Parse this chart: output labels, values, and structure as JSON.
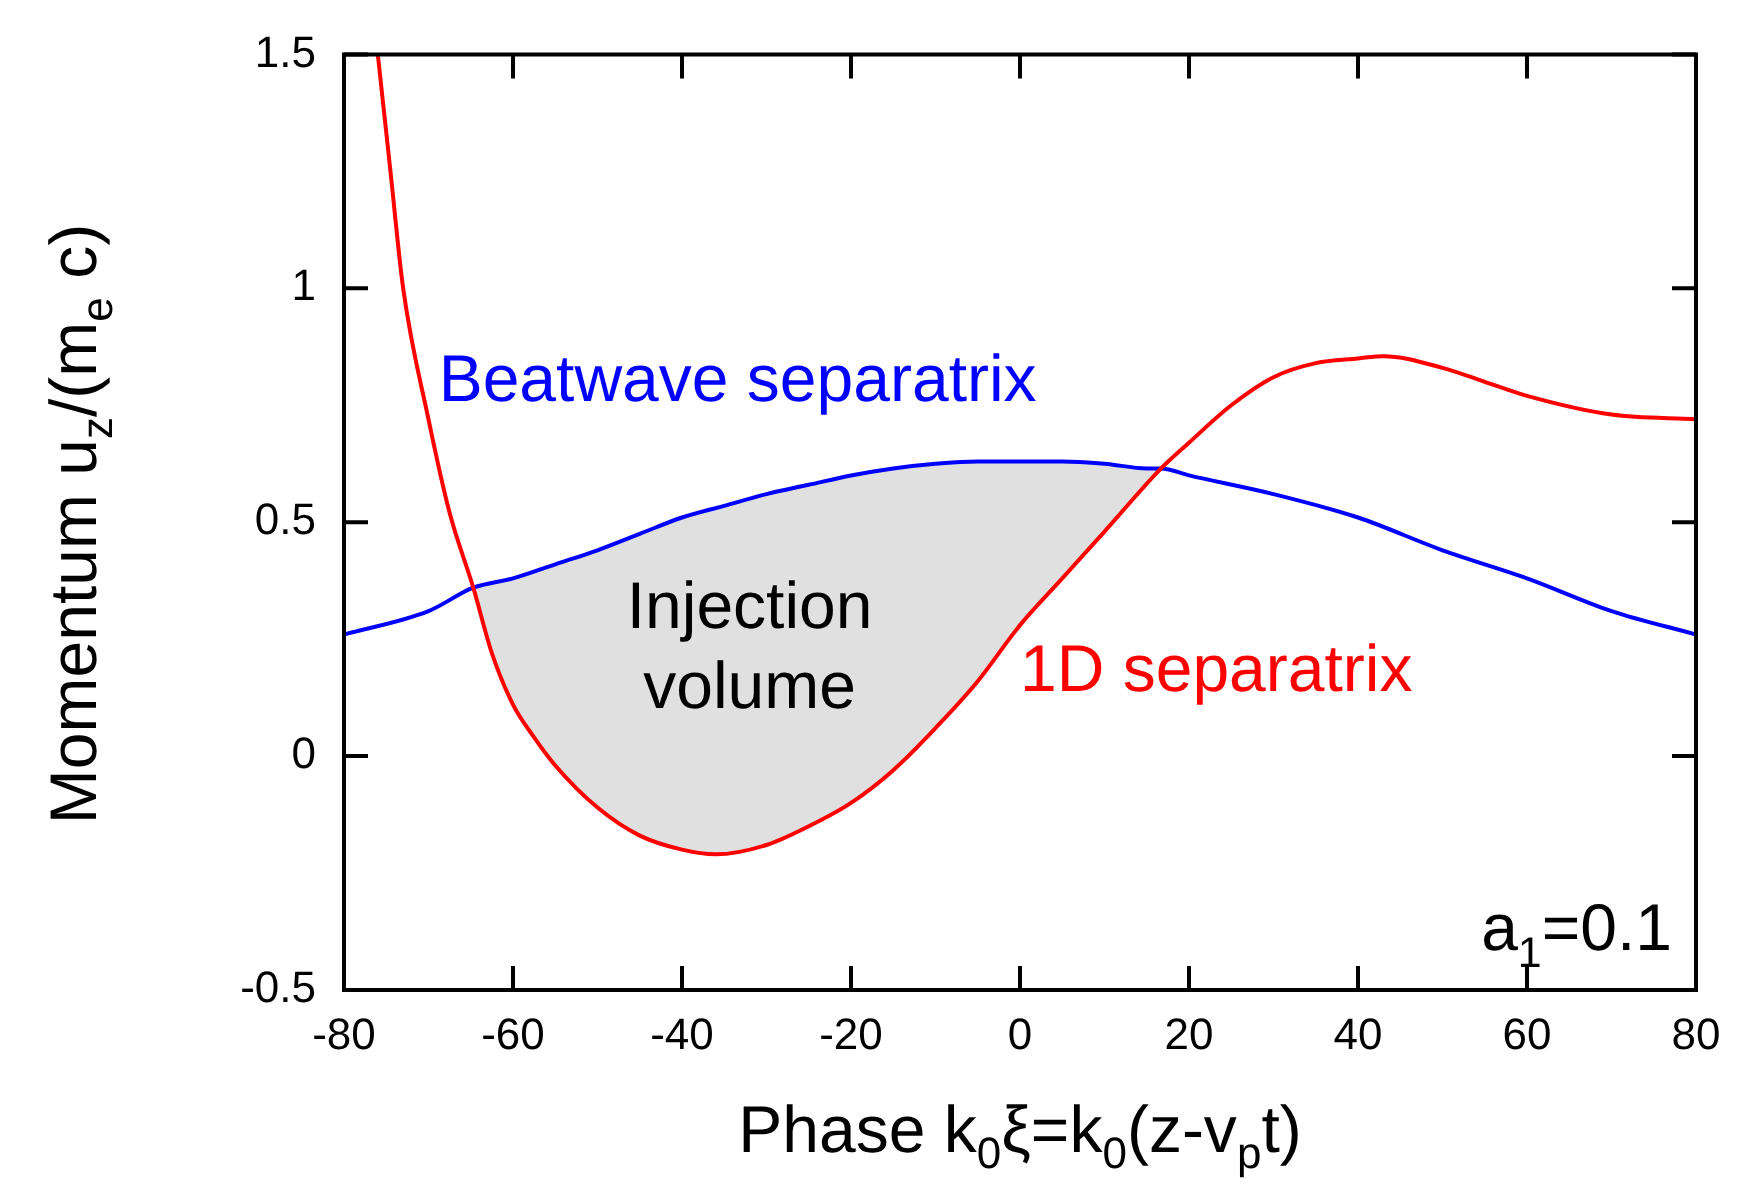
{
  "chart_data": {
    "type": "line",
    "xlabel": "Phase  k$_{0}$ξ=k$_{0}$(z-v$_{p}$t)",
    "ylabel": "Momentum  u$_{z}$/(m$_{e}$ c)",
    "xlim": [
      -80,
      80
    ],
    "xticks": [
      -80,
      -60,
      -40,
      -20,
      0,
      20,
      40,
      60,
      80
    ],
    "ylim": [
      -0.5,
      1.5
    ],
    "yticks": [
      -0.5,
      0,
      0.5,
      1,
      1.5
    ],
    "grid": false,
    "legend": false,
    "marker": "none",
    "line_style": "solid",
    "series": [
      {
        "name": "1D separatrix",
        "color": "#ff0000",
        "x": [
          -76,
          -74.5,
          -73,
          -70,
          -67.5,
          -64.7,
          -62.5,
          -60,
          -57.5,
          -55,
          -50,
          -45,
          -40,
          -36,
          -30,
          -25,
          -20,
          -15,
          -10,
          -5,
          0,
          5,
          10,
          16.7,
          20,
          25,
          30,
          35,
          40,
          43,
          50,
          55,
          60,
          70,
          80
        ],
        "values": [
          1.5,
          1.25,
          1.0,
          0.72,
          0.52,
          0.36,
          0.22,
          0.11,
          0.04,
          -0.02,
          -0.11,
          -0.17,
          -0.2,
          -0.21,
          -0.19,
          -0.15,
          -0.1,
          -0.03,
          0.06,
          0.16,
          0.28,
          0.38,
          0.48,
          0.615,
          0.67,
          0.75,
          0.81,
          0.84,
          0.85,
          0.855,
          0.83,
          0.8,
          0.77,
          0.73,
          0.72
        ]
      },
      {
        "name": "Beatwave separatrix",
        "color": "#0000ff",
        "x": [
          -80,
          -70,
          -64.7,
          -60,
          -55,
          -50,
          -45,
          -40,
          -35,
          -30,
          -25,
          -20,
          -15,
          -10,
          -5,
          0,
          5,
          10,
          15,
          16.7,
          20,
          30,
          40,
          50,
          60,
          70,
          80
        ],
        "values": [
          0.26,
          0.31,
          0.36,
          0.38,
          0.41,
          0.44,
          0.475,
          0.51,
          0.535,
          0.56,
          0.58,
          0.6,
          0.615,
          0.625,
          0.63,
          0.63,
          0.63,
          0.625,
          0.615,
          0.615,
          0.6,
          0.56,
          0.51,
          0.44,
          0.38,
          0.31,
          0.26
        ],
        "upper": [
          null,
          null,
          0.36,
          0.38,
          0.41,
          0.44,
          0.475,
          0.51,
          0.535,
          0.56,
          0.58,
          0.6,
          0.615,
          0.625,
          0.63,
          0.63,
          0.63,
          0.625,
          0.615,
          0.615,
          null,
          null,
          null,
          null,
          null,
          null,
          null
        ],
        "lower": [
          null,
          null,
          0.36,
          0.11,
          -0.02,
          -0.11,
          -0.17,
          -0.2,
          -0.21,
          -0.19,
          -0.15,
          -0.1,
          -0.03,
          0.06,
          0.16,
          0.28,
          0.38,
          0.48,
          0.585,
          0.615,
          null,
          null,
          null,
          null,
          null,
          null,
          null
        ]
      }
    ],
    "annotations": [
      "Injection volume",
      "a$_{1}$=0.1"
    ]
  }
}
